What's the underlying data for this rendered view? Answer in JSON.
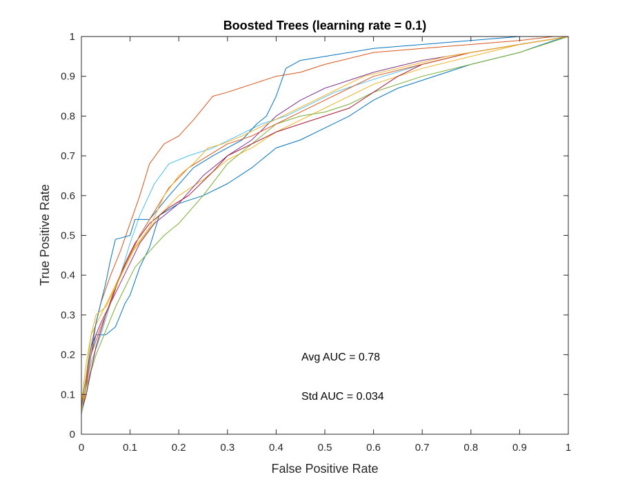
{
  "chart_data": {
    "type": "line",
    "title": "Boosted Trees (learning rate = 0.1)",
    "xlabel": "False Positive Rate",
    "ylabel": "True Positive Rate",
    "xlim": [
      0,
      1
    ],
    "ylim": [
      0,
      1
    ],
    "xticks": [
      "0",
      "0.1",
      "0.2",
      "0.3",
      "0.4",
      "0.5",
      "0.6",
      "0.7",
      "0.8",
      "0.9",
      "1"
    ],
    "yticks": [
      "0",
      "0.1",
      "0.2",
      "0.3",
      "0.4",
      "0.5",
      "0.6",
      "0.7",
      "0.8",
      "0.9",
      "1"
    ],
    "grid": false,
    "annotations": [
      {
        "text": "Avg AUC = 0.78"
      },
      {
        "text": "Std AUC = 0.034"
      }
    ],
    "series": [
      {
        "color": "#0072BD",
        "points": [
          [
            0,
            0
          ],
          [
            0,
            0.06
          ],
          [
            0.01,
            0.12
          ],
          [
            0.02,
            0.2
          ],
          [
            0.03,
            0.25
          ],
          [
            0.05,
            0.25
          ],
          [
            0.07,
            0.27
          ],
          [
            0.08,
            0.3
          ],
          [
            0.09,
            0.33
          ],
          [
            0.1,
            0.35
          ],
          [
            0.12,
            0.42
          ],
          [
            0.14,
            0.47
          ],
          [
            0.16,
            0.55
          ],
          [
            0.2,
            0.58
          ],
          [
            0.25,
            0.6
          ],
          [
            0.3,
            0.63
          ],
          [
            0.35,
            0.67
          ],
          [
            0.4,
            0.72
          ],
          [
            0.45,
            0.74
          ],
          [
            0.5,
            0.77
          ],
          [
            0.55,
            0.8
          ],
          [
            0.6,
            0.84
          ],
          [
            0.65,
            0.87
          ],
          [
            0.7,
            0.89
          ],
          [
            0.8,
            0.93
          ],
          [
            0.9,
            0.96
          ],
          [
            0.97,
            0.99
          ],
          [
            1,
            1
          ]
        ]
      },
      {
        "color": "#D95319",
        "points": [
          [
            0,
            0
          ],
          [
            0,
            0.05
          ],
          [
            0.01,
            0.12
          ],
          [
            0.02,
            0.2
          ],
          [
            0.03,
            0.28
          ],
          [
            0.04,
            0.33
          ],
          [
            0.06,
            0.4
          ],
          [
            0.08,
            0.46
          ],
          [
            0.1,
            0.53
          ],
          [
            0.12,
            0.6
          ],
          [
            0.14,
            0.68
          ],
          [
            0.17,
            0.73
          ],
          [
            0.2,
            0.75
          ],
          [
            0.23,
            0.79
          ],
          [
            0.27,
            0.85
          ],
          [
            0.3,
            0.86
          ],
          [
            0.35,
            0.88
          ],
          [
            0.4,
            0.9
          ],
          [
            0.45,
            0.91
          ],
          [
            0.5,
            0.93
          ],
          [
            0.6,
            0.96
          ],
          [
            0.7,
            0.97
          ],
          [
            0.8,
            0.98
          ],
          [
            0.9,
            0.99
          ],
          [
            0.97,
            1
          ],
          [
            1,
            1
          ]
        ]
      },
      {
        "color": "#EDB120",
        "points": [
          [
            0,
            0
          ],
          [
            0,
            0.08
          ],
          [
            0.01,
            0.18
          ],
          [
            0.02,
            0.25
          ],
          [
            0.04,
            0.3
          ],
          [
            0.06,
            0.35
          ],
          [
            0.08,
            0.4
          ],
          [
            0.1,
            0.45
          ],
          [
            0.13,
            0.5
          ],
          [
            0.16,
            0.55
          ],
          [
            0.2,
            0.6
          ],
          [
            0.25,
            0.64
          ],
          [
            0.3,
            0.69
          ],
          [
            0.35,
            0.72
          ],
          [
            0.4,
            0.76
          ],
          [
            0.45,
            0.79
          ],
          [
            0.5,
            0.82
          ],
          [
            0.55,
            0.85
          ],
          [
            0.6,
            0.88
          ],
          [
            0.7,
            0.92
          ],
          [
            0.8,
            0.95
          ],
          [
            0.9,
            0.98
          ],
          [
            1,
            1
          ]
        ]
      },
      {
        "color": "#7E2F8E",
        "points": [
          [
            0,
            0
          ],
          [
            0,
            0.07
          ],
          [
            0.01,
            0.14
          ],
          [
            0.02,
            0.22
          ],
          [
            0.04,
            0.28
          ],
          [
            0.06,
            0.33
          ],
          [
            0.08,
            0.38
          ],
          [
            0.1,
            0.43
          ],
          [
            0.12,
            0.48
          ],
          [
            0.15,
            0.53
          ],
          [
            0.2,
            0.58
          ],
          [
            0.25,
            0.65
          ],
          [
            0.3,
            0.7
          ],
          [
            0.35,
            0.74
          ],
          [
            0.4,
            0.8
          ],
          [
            0.45,
            0.84
          ],
          [
            0.5,
            0.87
          ],
          [
            0.55,
            0.89
          ],
          [
            0.6,
            0.91
          ],
          [
            0.7,
            0.94
          ],
          [
            0.8,
            0.96
          ],
          [
            0.9,
            0.98
          ],
          [
            1,
            1
          ]
        ]
      },
      {
        "color": "#77AC30",
        "points": [
          [
            0,
            0
          ],
          [
            0,
            0.06
          ],
          [
            0.01,
            0.12
          ],
          [
            0.03,
            0.2
          ],
          [
            0.05,
            0.26
          ],
          [
            0.07,
            0.32
          ],
          [
            0.09,
            0.37
          ],
          [
            0.11,
            0.42
          ],
          [
            0.14,
            0.46
          ],
          [
            0.17,
            0.5
          ],
          [
            0.2,
            0.53
          ],
          [
            0.25,
            0.6
          ],
          [
            0.3,
            0.68
          ],
          [
            0.35,
            0.73
          ],
          [
            0.4,
            0.78
          ],
          [
            0.45,
            0.8
          ],
          [
            0.5,
            0.81
          ],
          [
            0.55,
            0.83
          ],
          [
            0.6,
            0.86
          ],
          [
            0.7,
            0.9
          ],
          [
            0.8,
            0.93
          ],
          [
            0.9,
            0.96
          ],
          [
            1,
            1
          ]
        ]
      },
      {
        "color": "#4DBEEE",
        "points": [
          [
            0,
            0
          ],
          [
            0,
            0.05
          ],
          [
            0.01,
            0.1
          ],
          [
            0.02,
            0.18
          ],
          [
            0.04,
            0.25
          ],
          [
            0.06,
            0.33
          ],
          [
            0.08,
            0.4
          ],
          [
            0.1,
            0.48
          ],
          [
            0.12,
            0.55
          ],
          [
            0.15,
            0.63
          ],
          [
            0.18,
            0.68
          ],
          [
            0.22,
            0.7
          ],
          [
            0.27,
            0.72
          ],
          [
            0.32,
            0.75
          ],
          [
            0.37,
            0.78
          ],
          [
            0.42,
            0.8
          ],
          [
            0.47,
            0.83
          ],
          [
            0.52,
            0.86
          ],
          [
            0.57,
            0.88
          ],
          [
            0.62,
            0.9
          ],
          [
            0.7,
            0.93
          ],
          [
            0.8,
            0.96
          ],
          [
            0.9,
            0.98
          ],
          [
            1,
            1
          ]
        ]
      },
      {
        "color": "#A2142F",
        "points": [
          [
            0,
            0
          ],
          [
            0,
            0.06
          ],
          [
            0.01,
            0.1
          ],
          [
            0.02,
            0.16
          ],
          [
            0.03,
            0.22
          ],
          [
            0.05,
            0.3
          ],
          [
            0.07,
            0.37
          ],
          [
            0.09,
            0.43
          ],
          [
            0.11,
            0.48
          ],
          [
            0.14,
            0.53
          ],
          [
            0.18,
            0.57
          ],
          [
            0.22,
            0.6
          ],
          [
            0.27,
            0.66
          ],
          [
            0.3,
            0.7
          ],
          [
            0.35,
            0.73
          ],
          [
            0.4,
            0.76
          ],
          [
            0.45,
            0.78
          ],
          [
            0.5,
            0.8
          ],
          [
            0.55,
            0.82
          ],
          [
            0.6,
            0.86
          ],
          [
            0.65,
            0.9
          ],
          [
            0.7,
            0.93
          ],
          [
            0.8,
            0.96
          ],
          [
            0.9,
            0.98
          ],
          [
            1,
            1
          ]
        ]
      },
      {
        "color": "#0072BD",
        "points": [
          [
            0,
            0
          ],
          [
            0,
            0.07
          ],
          [
            0.01,
            0.15
          ],
          [
            0.02,
            0.22
          ],
          [
            0.03,
            0.28
          ],
          [
            0.04,
            0.33
          ],
          [
            0.05,
            0.38
          ],
          [
            0.06,
            0.44
          ],
          [
            0.07,
            0.49
          ],
          [
            0.1,
            0.5
          ],
          [
            0.11,
            0.54
          ],
          [
            0.14,
            0.54
          ],
          [
            0.18,
            0.6
          ],
          [
            0.23,
            0.67
          ],
          [
            0.27,
            0.7
          ],
          [
            0.3,
            0.72
          ],
          [
            0.33,
            0.74
          ],
          [
            0.36,
            0.78
          ],
          [
            0.38,
            0.8
          ],
          [
            0.4,
            0.85
          ],
          [
            0.42,
            0.92
          ],
          [
            0.45,
            0.94
          ],
          [
            0.5,
            0.95
          ],
          [
            0.6,
            0.97
          ],
          [
            0.7,
            0.98
          ],
          [
            0.8,
            0.99
          ],
          [
            0.9,
            1
          ],
          [
            1,
            1
          ]
        ]
      },
      {
        "color": "#D95319",
        "points": [
          [
            0,
            0
          ],
          [
            0,
            0.08
          ],
          [
            0.01,
            0.13
          ],
          [
            0.02,
            0.2
          ],
          [
            0.04,
            0.27
          ],
          [
            0.06,
            0.33
          ],
          [
            0.08,
            0.4
          ],
          [
            0.1,
            0.45
          ],
          [
            0.12,
            0.5
          ],
          [
            0.15,
            0.56
          ],
          [
            0.18,
            0.62
          ],
          [
            0.22,
            0.67
          ],
          [
            0.26,
            0.7
          ],
          [
            0.3,
            0.73
          ],
          [
            0.35,
            0.75
          ],
          [
            0.4,
            0.78
          ],
          [
            0.45,
            0.81
          ],
          [
            0.5,
            0.84
          ],
          [
            0.55,
            0.87
          ],
          [
            0.6,
            0.9
          ],
          [
            0.7,
            0.93
          ],
          [
            0.8,
            0.96
          ],
          [
            0.9,
            0.98
          ],
          [
            1,
            1
          ]
        ]
      },
      {
        "color": "#EDB120",
        "points": [
          [
            0,
            0
          ],
          [
            0,
            0.05
          ],
          [
            0.01,
            0.15
          ],
          [
            0.02,
            0.25
          ],
          [
            0.03,
            0.3
          ],
          [
            0.05,
            0.32
          ],
          [
            0.07,
            0.37
          ],
          [
            0.09,
            0.42
          ],
          [
            0.11,
            0.47
          ],
          [
            0.14,
            0.52
          ],
          [
            0.17,
            0.6
          ],
          [
            0.2,
            0.65
          ],
          [
            0.23,
            0.68
          ],
          [
            0.26,
            0.72
          ],
          [
            0.29,
            0.73
          ],
          [
            0.33,
            0.75
          ],
          [
            0.38,
            0.78
          ],
          [
            0.43,
            0.81
          ],
          [
            0.48,
            0.84
          ],
          [
            0.53,
            0.87
          ],
          [
            0.58,
            0.9
          ],
          [
            0.65,
            0.92
          ],
          [
            0.75,
            0.95
          ],
          [
            0.85,
            0.97
          ],
          [
            0.95,
            0.99
          ],
          [
            1,
            1
          ]
        ]
      }
    ]
  }
}
